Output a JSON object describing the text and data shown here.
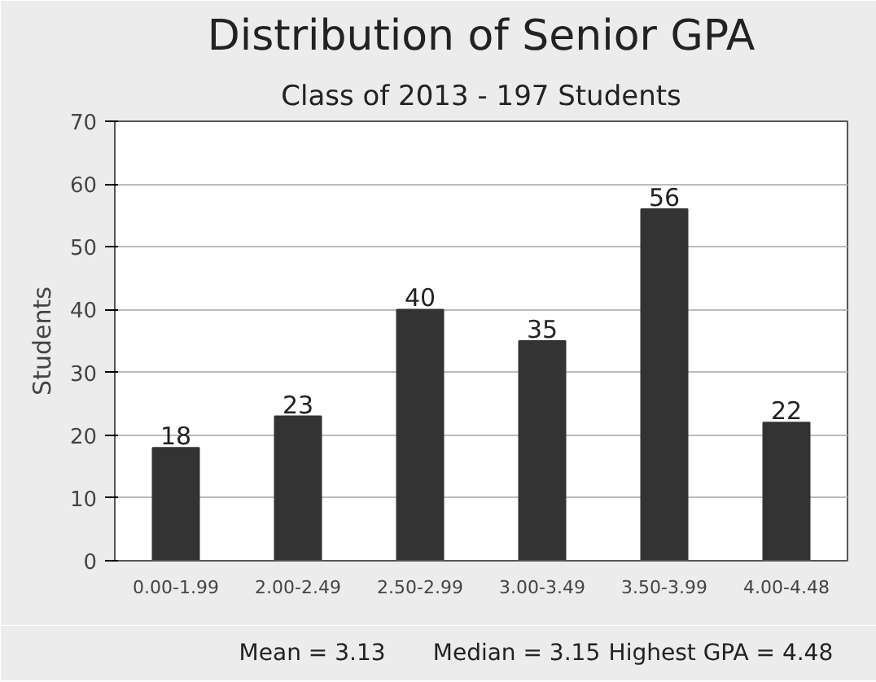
{
  "chart_data": {
    "type": "bar",
    "title": "Distribution of Senior GPA",
    "subtitle": "Class of 2013 - 197 Students",
    "ylabel": "Students",
    "categories": [
      "0.00-1.99",
      "2.00-2.49",
      "2.50-2.99",
      "3.00-3.49",
      "3.50-3.99",
      "4.00-4.48"
    ],
    "values": [
      18,
      23,
      40,
      35,
      56,
      22
    ],
    "color": "#333333",
    "ylim": [
      0,
      70
    ],
    "yticks": [
      0,
      10,
      20,
      30,
      40,
      50,
      60,
      70
    ],
    "grid": "y",
    "data_labels": true,
    "annotations": [
      "Mean = 3.13",
      "Median = 3.15",
      "Highest GPA = 4.48"
    ]
  }
}
